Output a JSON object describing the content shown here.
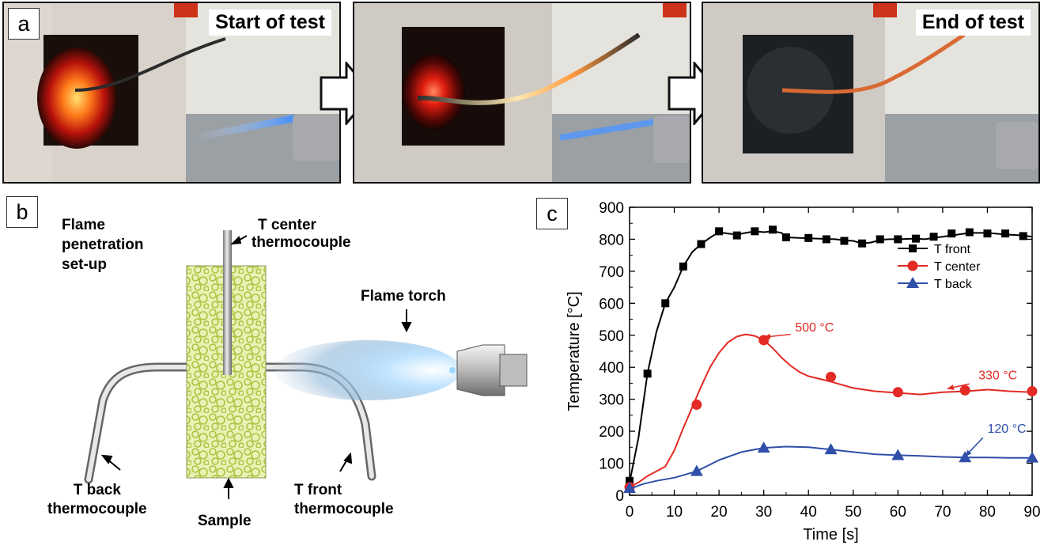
{
  "panel_a": {
    "letter": "a",
    "photos": [
      {
        "label": "Start of test"
      },
      {
        "label": ""
      },
      {
        "label": "End of test"
      }
    ]
  },
  "panel_b": {
    "letter": "b",
    "title_lines": [
      "Flame",
      "penetration",
      "set-up"
    ],
    "t_center_label": [
      "T center",
      "thermocouple"
    ],
    "flame_torch_label": "Flame torch",
    "t_back_label": [
      "T back",
      "thermocouple"
    ],
    "sample_label": "Sample",
    "t_front_label": [
      "T front",
      "thermocouple"
    ],
    "colors": {
      "sample_fill": "#e9f2b5",
      "sample_pattern": "#a9c440"
    }
  },
  "panel_c": {
    "letter": "c",
    "annotations": [
      {
        "text": "500 °C",
        "color": "#e32a24"
      },
      {
        "text": "330 °C",
        "color": "#e32a24"
      },
      {
        "text": "120 °C",
        "color": "#2f4fa8"
      }
    ]
  },
  "chart_data": {
    "type": "line",
    "xlabel": "Time [s]",
    "ylabel": "Temperature [°C]",
    "xlim": [
      0,
      90
    ],
    "ylim": [
      0,
      900
    ],
    "xticks": [
      0,
      10,
      20,
      30,
      40,
      50,
      60,
      70,
      80,
      90
    ],
    "yticks": [
      0,
      100,
      200,
      300,
      400,
      500,
      600,
      700,
      800,
      900
    ],
    "legend_position": "top-right",
    "series": [
      {
        "name": "T front",
        "color": "#000000",
        "marker": "square",
        "curve": [
          [
            0,
            40
          ],
          [
            2,
            180
          ],
          [
            4,
            380
          ],
          [
            6,
            510
          ],
          [
            8,
            600
          ],
          [
            10,
            650
          ],
          [
            12,
            715
          ],
          [
            14,
            760
          ],
          [
            16,
            785
          ],
          [
            18,
            805
          ],
          [
            20,
            822
          ],
          [
            22,
            818
          ],
          [
            24,
            815
          ],
          [
            26,
            820
          ],
          [
            28,
            825
          ],
          [
            30,
            822
          ],
          [
            32,
            825
          ],
          [
            34,
            820
          ],
          [
            35,
            806
          ],
          [
            38,
            804
          ],
          [
            42,
            802
          ],
          [
            46,
            800
          ],
          [
            48,
            797
          ],
          [
            50,
            795
          ],
          [
            52,
            787
          ],
          [
            54,
            790
          ],
          [
            56,
            798
          ],
          [
            58,
            800
          ],
          [
            60,
            800
          ],
          [
            64,
            802
          ],
          [
            66,
            800
          ],
          [
            68,
            804
          ],
          [
            72,
            812
          ],
          [
            74,
            816
          ],
          [
            76,
            820
          ],
          [
            80,
            820
          ],
          [
            84,
            815
          ],
          [
            88,
            812
          ],
          [
            90,
            808
          ]
        ],
        "markers": [
          [
            0,
            45
          ],
          [
            4,
            380
          ],
          [
            8,
            600
          ],
          [
            12,
            715
          ],
          [
            16,
            785
          ],
          [
            20,
            825
          ],
          [
            24,
            812
          ],
          [
            28,
            825
          ],
          [
            32,
            830
          ],
          [
            35,
            806
          ],
          [
            40,
            804
          ],
          [
            44,
            800
          ],
          [
            48,
            795
          ],
          [
            52,
            787
          ],
          [
            56,
            800
          ],
          [
            60,
            800
          ],
          [
            64,
            802
          ],
          [
            68,
            808
          ],
          [
            72,
            818
          ],
          [
            76,
            822
          ],
          [
            80,
            818
          ],
          [
            84,
            818
          ],
          [
            88,
            810
          ]
        ]
      },
      {
        "name": "T center",
        "color": "#e32a24",
        "marker": "circle",
        "curve": [
          [
            0,
            25
          ],
          [
            2,
            40
          ],
          [
            4,
            60
          ],
          [
            6,
            75
          ],
          [
            8,
            90
          ],
          [
            10,
            140
          ],
          [
            12,
            210
          ],
          [
            14,
            275
          ],
          [
            16,
            340
          ],
          [
            18,
            400
          ],
          [
            20,
            445
          ],
          [
            22,
            478
          ],
          [
            24,
            496
          ],
          [
            26,
            503
          ],
          [
            28,
            498
          ],
          [
            30,
            485
          ],
          [
            32,
            460
          ],
          [
            34,
            430
          ],
          [
            36,
            405
          ],
          [
            38,
            385
          ],
          [
            40,
            372
          ],
          [
            45,
            355
          ],
          [
            50,
            335
          ],
          [
            55,
            325
          ],
          [
            60,
            320
          ],
          [
            65,
            315
          ],
          [
            70,
            322
          ],
          [
            75,
            325
          ],
          [
            80,
            330
          ],
          [
            85,
            325
          ],
          [
            90,
            322
          ]
        ],
        "markers": [
          [
            0,
            25
          ],
          [
            15,
            283
          ],
          [
            30,
            485
          ],
          [
            45,
            370
          ],
          [
            60,
            322
          ],
          [
            75,
            328
          ],
          [
            90,
            325
          ]
        ]
      },
      {
        "name": "T back",
        "color": "#2f4fa8",
        "marker": "triangle",
        "curve": [
          [
            0,
            20
          ],
          [
            3,
            35
          ],
          [
            6,
            45
          ],
          [
            10,
            55
          ],
          [
            15,
            75
          ],
          [
            20,
            110
          ],
          [
            25,
            135
          ],
          [
            30,
            148
          ],
          [
            35,
            152
          ],
          [
            40,
            150
          ],
          [
            45,
            143
          ],
          [
            50,
            135
          ],
          [
            55,
            128
          ],
          [
            60,
            125
          ],
          [
            65,
            123
          ],
          [
            70,
            120
          ],
          [
            75,
            118
          ],
          [
            80,
            118
          ],
          [
            85,
            117
          ],
          [
            90,
            117
          ]
        ],
        "markers": [
          [
            0,
            22
          ],
          [
            15,
            75
          ],
          [
            30,
            148
          ],
          [
            45,
            143
          ],
          [
            60,
            125
          ],
          [
            75,
            118
          ],
          [
            90,
            117
          ]
        ]
      }
    ]
  }
}
